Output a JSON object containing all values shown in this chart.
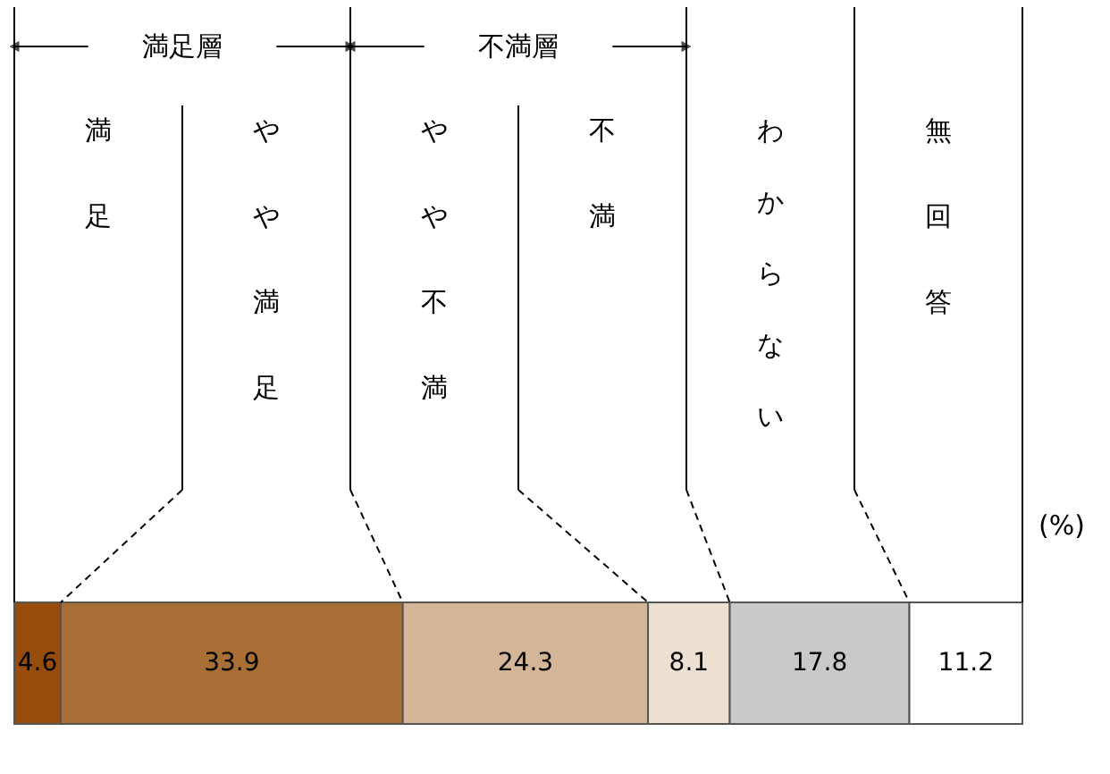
{
  "chart_data": {
    "type": "bar",
    "orientation": "horizontal",
    "stacked": true,
    "categories": [
      null
    ],
    "tick_labels": false,
    "data_labels": true,
    "series": [
      {
        "name": "満足",
        "color": "#974c0c",
        "values": [
          4.6
        ]
      },
      {
        "name": "やや満足",
        "color": "#a86e35",
        "values": [
          33.9
        ]
      },
      {
        "name": "やや不満",
        "color": "#d5b598",
        "values": [
          24.3
        ]
      },
      {
        "name": "不満",
        "color": "#ece0d3",
        "values": [
          8.1
        ]
      },
      {
        "name": "わからない",
        "color": "#c9c9cb",
        "values": [
          17.8
        ]
      },
      {
        "name": "無回答",
        "color": "#ffffff",
        "values": [
          11.2
        ]
      }
    ],
    "annotations": [
      "満足層",
      "不満層",
      "(%)"
    ]
  }
}
